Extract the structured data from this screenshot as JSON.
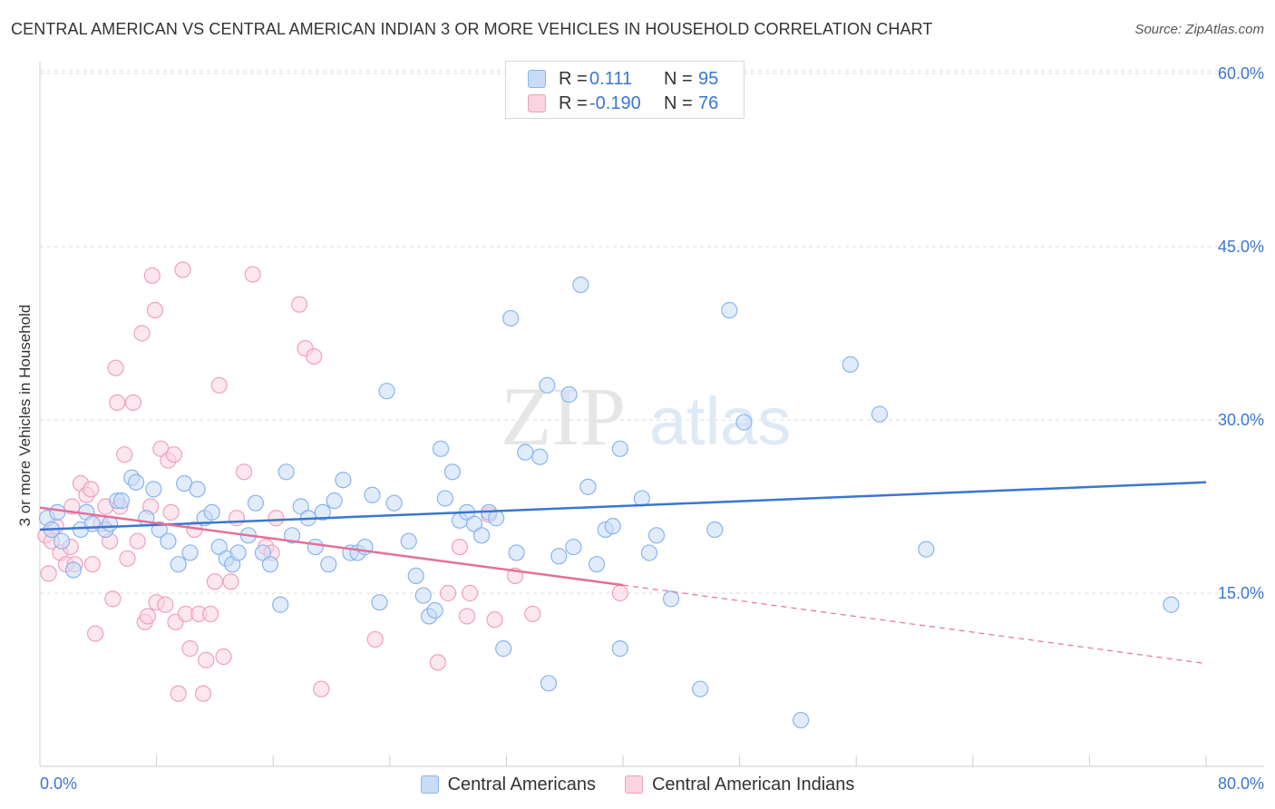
{
  "header": {
    "title": "CENTRAL AMERICAN VS CENTRAL AMERICAN INDIAN 3 OR MORE VEHICLES IN HOUSEHOLD CORRELATION CHART",
    "source": "Source: ZipAtlas.com"
  },
  "legend": {
    "rows": [
      {
        "label": "R =",
        "r": "0.111",
        "n_label": "N =",
        "n": "95",
        "color": "#8ab4ee",
        "fill": "#c9dcf7"
      },
      {
        "label": "R =",
        "r": "-0.190",
        "n_label": "N =",
        "n": "76",
        "color": "#f0a0bc",
        "fill": "#fbd3e1"
      }
    ]
  },
  "watermark": {
    "zip": "ZIP",
    "atlas": "atlas"
  },
  "chart_data": {
    "type": "scatter",
    "title": "CENTRAL AMERICAN VS CENTRAL AMERICAN INDIAN 3 OR MORE VEHICLES IN HOUSEHOLD CORRELATION CHART",
    "xlabel": "",
    "ylabel": "3 or more Vehicles in Household",
    "xlim": [
      0,
      80
    ],
    "ylim": [
      0,
      63
    ],
    "x_tick_labels": [
      "0.0%",
      "80.0%"
    ],
    "y_ticks": [
      15,
      30,
      45,
      60
    ],
    "y_tick_labels": [
      "15.0%",
      "30.0%",
      "45.0%",
      "60.0%"
    ],
    "grid": true,
    "legend_position": "bottom-center",
    "series": [
      {
        "name": "Central Americans",
        "color": "#3a76d2",
        "fill": "#c9dcf7",
        "stroke": "#8ab4ee",
        "trend": {
          "x": [
            0,
            80
          ],
          "y": [
            20.5,
            24.6
          ]
        },
        "points": [
          [
            0.5,
            21.5
          ],
          [
            0.8,
            20.5
          ],
          [
            1.2,
            22
          ],
          [
            1.5,
            19.5
          ],
          [
            2.3,
            17
          ],
          [
            2.8,
            20.5
          ],
          [
            3.2,
            22
          ],
          [
            3.6,
            21
          ],
          [
            4.5,
            20.5
          ],
          [
            4.8,
            21
          ],
          [
            5.3,
            23
          ],
          [
            5.6,
            23
          ],
          [
            6.3,
            25
          ],
          [
            6.6,
            24.6
          ],
          [
            7.3,
            21.5
          ],
          [
            7.8,
            24
          ],
          [
            8.2,
            20.5
          ],
          [
            8.8,
            19.5
          ],
          [
            9.5,
            17.5
          ],
          [
            9.9,
            24.5
          ],
          [
            10.3,
            18.5
          ],
          [
            10.8,
            24
          ],
          [
            11.3,
            21.5
          ],
          [
            11.8,
            22
          ],
          [
            12.3,
            19
          ],
          [
            12.8,
            18
          ],
          [
            13.2,
            17.5
          ],
          [
            13.6,
            18.5
          ],
          [
            14.3,
            20
          ],
          [
            14.8,
            22.8
          ],
          [
            15.3,
            18.5
          ],
          [
            15.8,
            17.5
          ],
          [
            16.5,
            14
          ],
          [
            16.9,
            25.5
          ],
          [
            17.3,
            20
          ],
          [
            17.9,
            22.5
          ],
          [
            18.4,
            21.5
          ],
          [
            18.9,
            19
          ],
          [
            19.4,
            22
          ],
          [
            19.8,
            17.5
          ],
          [
            20.2,
            23
          ],
          [
            20.8,
            24.8
          ],
          [
            21.3,
            18.5
          ],
          [
            21.8,
            18.5
          ],
          [
            22.3,
            19
          ],
          [
            22.8,
            23.5
          ],
          [
            23.3,
            14.2
          ],
          [
            23.8,
            32.5
          ],
          [
            24.3,
            22.8
          ],
          [
            25.3,
            19.5
          ],
          [
            25.8,
            16.5
          ],
          [
            26.3,
            14.8
          ],
          [
            26.7,
            13
          ],
          [
            27.1,
            13.5
          ],
          [
            27.5,
            27.5
          ],
          [
            27.8,
            23.2
          ],
          [
            28.3,
            25.5
          ],
          [
            28.8,
            21.3
          ],
          [
            29.3,
            22
          ],
          [
            29.8,
            21
          ],
          [
            30.3,
            20
          ],
          [
            30.8,
            22
          ],
          [
            31.3,
            21.5
          ],
          [
            31.8,
            10.2
          ],
          [
            32.3,
            38.8
          ],
          [
            32.7,
            18.5
          ],
          [
            33.3,
            27.2
          ],
          [
            34.3,
            26.8
          ],
          [
            34.8,
            33
          ],
          [
            34.9,
            7.2
          ],
          [
            35.6,
            18.2
          ],
          [
            36.3,
            32.2
          ],
          [
            36.6,
            19
          ],
          [
            37.1,
            41.7
          ],
          [
            37.6,
            24.2
          ],
          [
            38.2,
            17.5
          ],
          [
            38.8,
            20.5
          ],
          [
            39.3,
            20.8
          ],
          [
            39.8,
            27.5
          ],
          [
            39.8,
            10.2
          ],
          [
            41.3,
            23.2
          ],
          [
            41.8,
            18.5
          ],
          [
            42.3,
            20
          ],
          [
            43.3,
            14.5
          ],
          [
            45.3,
            6.7
          ],
          [
            46.3,
            20.5
          ],
          [
            47.3,
            39.5
          ],
          [
            48.3,
            29.8
          ],
          [
            52.2,
            4
          ],
          [
            55.6,
            34.8
          ],
          [
            57.6,
            30.5
          ],
          [
            60.8,
            18.8
          ],
          [
            77.6,
            14
          ]
        ]
      },
      {
        "name": "Central American Indians",
        "color": "#e4709a",
        "fill": "#fbd3e1",
        "stroke": "#f0a0bc",
        "trend": {
          "x": [
            0,
            40
          ],
          "y": [
            22.4,
            15.7
          ]
        },
        "trend_dashed": {
          "x": [
            40,
            80
          ],
          "y": [
            15.7,
            8.9
          ]
        },
        "points": [
          [
            0.4,
            20
          ],
          [
            0.6,
            16.7
          ],
          [
            0.8,
            19.5
          ],
          [
            1.1,
            20.8
          ],
          [
            1.4,
            18.5
          ],
          [
            1.8,
            17.5
          ],
          [
            2.1,
            19
          ],
          [
            2.2,
            22.5
          ],
          [
            2.4,
            17.5
          ],
          [
            2.8,
            24.5
          ],
          [
            3.2,
            23.5
          ],
          [
            3.5,
            24
          ],
          [
            3.6,
            17.5
          ],
          [
            3.8,
            11.5
          ],
          [
            4.2,
            21
          ],
          [
            4.5,
            22.5
          ],
          [
            4.8,
            19.5
          ],
          [
            5.0,
            14.5
          ],
          [
            5.2,
            34.5
          ],
          [
            5.3,
            31.5
          ],
          [
            5.5,
            22.5
          ],
          [
            5.8,
            27
          ],
          [
            6.0,
            18
          ],
          [
            6.4,
            31.5
          ],
          [
            6.7,
            19.5
          ],
          [
            7.0,
            37.5
          ],
          [
            7.2,
            12.5
          ],
          [
            7.4,
            13
          ],
          [
            7.6,
            22.5
          ],
          [
            7.7,
            42.5
          ],
          [
            7.9,
            39.5
          ],
          [
            8.0,
            14.2
          ],
          [
            8.3,
            27.5
          ],
          [
            8.6,
            14
          ],
          [
            8.8,
            26.5
          ],
          [
            9.0,
            22
          ],
          [
            9.2,
            27
          ],
          [
            9.3,
            12.5
          ],
          [
            9.5,
            6.3
          ],
          [
            9.8,
            43
          ],
          [
            10.0,
            13.2
          ],
          [
            10.3,
            10.2
          ],
          [
            10.6,
            20.5
          ],
          [
            10.9,
            13.2
          ],
          [
            11.2,
            6.3
          ],
          [
            11.4,
            9.2
          ],
          [
            11.7,
            13.2
          ],
          [
            12.0,
            16
          ],
          [
            12.3,
            33
          ],
          [
            12.6,
            9.5
          ],
          [
            13.1,
            16
          ],
          [
            13.5,
            21.5
          ],
          [
            14.0,
            25.5
          ],
          [
            14.6,
            42.6
          ],
          [
            15.5,
            19
          ],
          [
            15.9,
            18.5
          ],
          [
            16.2,
            21.5
          ],
          [
            17.8,
            40
          ],
          [
            18.2,
            36.2
          ],
          [
            18.8,
            35.5
          ],
          [
            19.3,
            6.7
          ],
          [
            23.0,
            11
          ],
          [
            27.3,
            9
          ],
          [
            28.0,
            15
          ],
          [
            28.8,
            19
          ],
          [
            29.3,
            13
          ],
          [
            29.5,
            15
          ],
          [
            30.8,
            21.8
          ],
          [
            31.2,
            12.7
          ],
          [
            32.6,
            16.5
          ],
          [
            33.8,
            13.2
          ],
          [
            39.8,
            15
          ]
        ]
      }
    ]
  }
}
